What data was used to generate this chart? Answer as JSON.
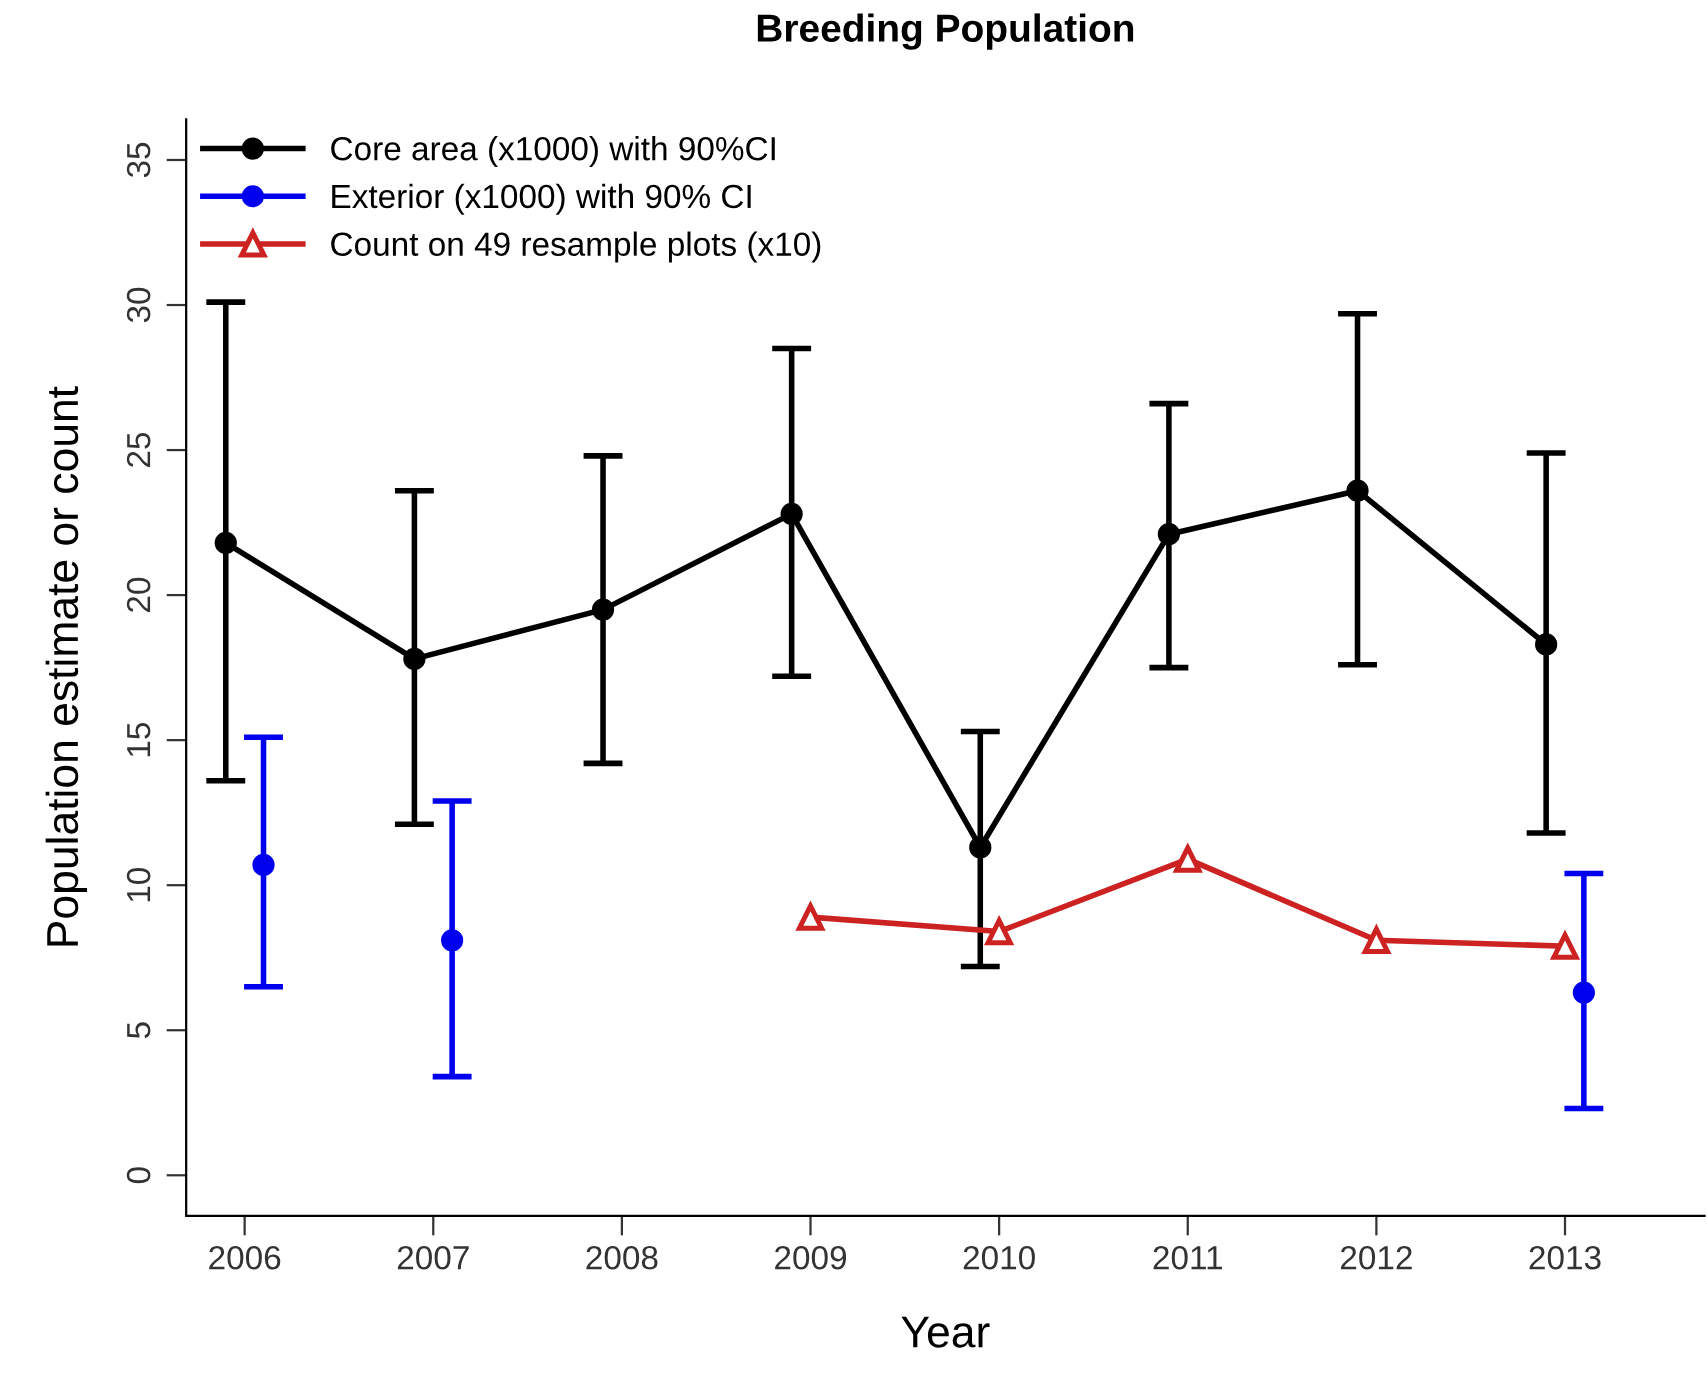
{
  "chart_data": {
    "type": "line",
    "title": "Breeding Population",
    "xlabel": "Year",
    "ylabel": "Population estimate or count",
    "xlim": [
      2005.69,
      2013.74
    ],
    "xticks": [
      2006,
      2007,
      2008,
      2009,
      2010,
      2011,
      2012,
      2013
    ],
    "ylim": [
      -1.4,
      36.4
    ],
    "yticks": [
      0,
      5,
      10,
      15,
      20,
      25,
      30,
      35
    ],
    "grid": false,
    "legend": "top left",
    "series": [
      {
        "name": "Core area (x1000) with 90%CI",
        "color": "#000000",
        "marker": "circle",
        "x": [
          2005.9,
          2006.9,
          2007.9,
          2008.9,
          2009.9,
          2010.9,
          2011.9,
          2012.9
        ],
        "values": [
          21.8,
          17.8,
          19.5,
          22.8,
          11.3,
          22.1,
          23.6,
          18.3
        ],
        "errors": [
          [
            13.6,
            30.1
          ],
          [
            12.1,
            23.6
          ],
          [
            14.2,
            24.8
          ],
          [
            17.2,
            28.5
          ],
          [
            7.2,
            15.3
          ],
          [
            17.5,
            26.6
          ],
          [
            17.6,
            29.7
          ],
          [
            11.8,
            24.9
          ]
        ]
      },
      {
        "name": "Exterior (x1000) with 90% CI",
        "type": "scatter",
        "color": "#0000ee",
        "marker": "circle",
        "x": [
          2006.1,
          2007.1,
          2013.1
        ],
        "values": [
          10.7,
          8.1,
          6.3
        ],
        "errors": [
          [
            6.5,
            15.1
          ],
          [
            3.4,
            12.9
          ],
          [
            2.3,
            10.4
          ]
        ]
      },
      {
        "name": "Count on 49 resample plots (x10)",
        "color": "#cc2222",
        "marker": "triangle",
        "x": [
          2009,
          2010,
          2011,
          2012,
          2013
        ],
        "values": [
          8.9,
          8.4,
          10.9,
          8.1,
          7.9
        ]
      }
    ]
  }
}
